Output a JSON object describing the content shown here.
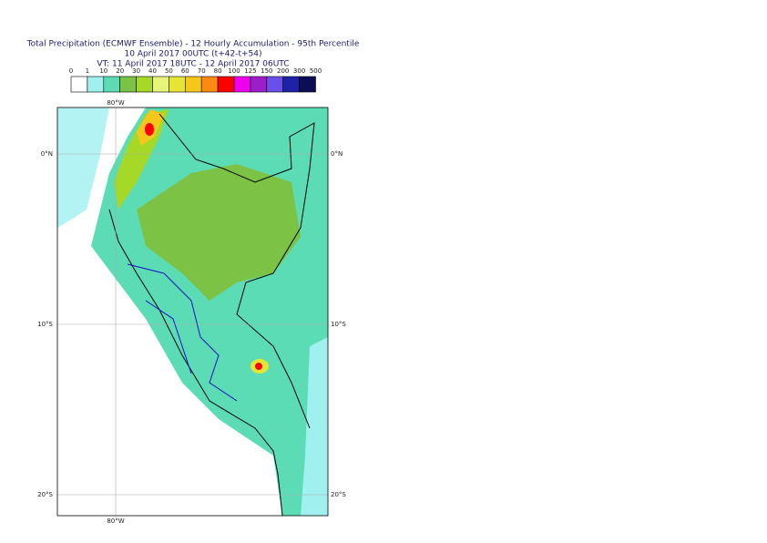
{
  "header": {
    "title_lines": [
      "Total Precipitation (ECMWF Ensemble) - 12 Hourly Accumulation - 95th Percentile",
      "10 April 2017 00UTC (t+42-t+54)",
      "VT: 11 April 2017 18UTC - 12 April 2017 06UTC"
    ]
  },
  "legend": {
    "labels": [
      0,
      1,
      10,
      20,
      30,
      40,
      50,
      60,
      70,
      80,
      100,
      125,
      150,
      200,
      300,
      500
    ],
    "colors": [
      "#ffffff",
      "#a0f0f0",
      "#5cdcb5",
      "#7cc244",
      "#a6d827",
      "#e8f57b",
      "#e5e534",
      "#f5c71a",
      "#fb8a12",
      "#ff0000",
      "#f000f0",
      "#9c1ec8",
      "#6a4fe8",
      "#1e22a6",
      "#0d0d55"
    ]
  },
  "map": {
    "top_labels": [
      "80°W"
    ],
    "bottom_labels": [
      "80°W"
    ],
    "left_labels": [
      "0°N",
      "10°S",
      "20°S"
    ],
    "right_labels": [
      "0°N",
      "10°S",
      "20°S"
    ]
  }
}
